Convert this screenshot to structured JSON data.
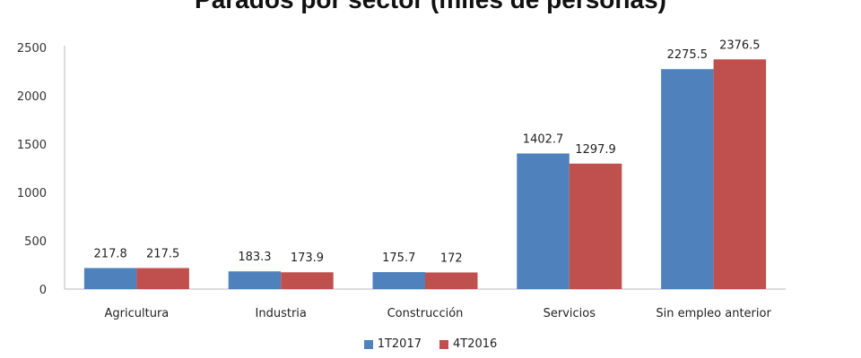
{
  "chart_data": {
    "type": "bar",
    "title": "Parados por sector (miles de personas)",
    "xlabel": "",
    "ylabel": "",
    "ylim": [
      0,
      2500
    ],
    "yticks": [
      0,
      500,
      1000,
      1500,
      2000,
      2500
    ],
    "grid": false,
    "legend_position": "bottom",
    "categories": [
      "Agricultura",
      "Industria",
      "Construcción",
      "Servicios",
      "Sin empleo anterior"
    ],
    "series": [
      {
        "name": "1T2017",
        "color": "#4f81bd",
        "values": [
          217.8,
          183.3,
          175.7,
          1402.7,
          2275.5
        ],
        "labels": [
          "217.8",
          "183.3",
          "175.7",
          "1402.7",
          "2275.5"
        ]
      },
      {
        "name": "4T2016",
        "color": "#c0504d",
        "values": [
          217.5,
          173.9,
          172,
          1297.9,
          2376.5
        ],
        "labels": [
          "217.5",
          "173.9",
          "172",
          "1297.9",
          "2376.5"
        ]
      }
    ]
  }
}
